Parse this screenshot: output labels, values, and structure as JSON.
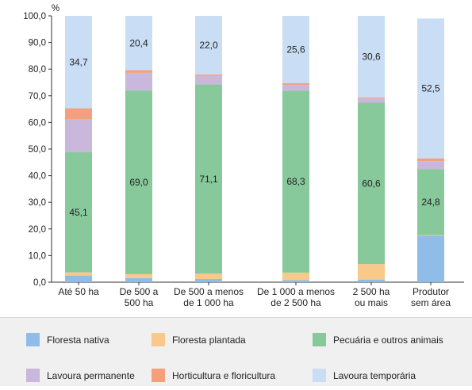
{
  "chart_data": {
    "type": "bar",
    "stacked": true,
    "orientation": "vertical",
    "unit_label": "%",
    "ylim": [
      0,
      100
    ],
    "yticks": [
      "0,0",
      "10,0",
      "20,0",
      "30,0",
      "40,0",
      "50,0",
      "60,0",
      "70,0",
      "80,0",
      "90,0",
      "100,0"
    ],
    "grid": false,
    "legend_position": "bottom",
    "categories": [
      [
        "Até 50 ha"
      ],
      [
        "De 500 a",
        "500 ha"
      ],
      [
        "De 500 a menos",
        "de 1 000 ha"
      ],
      [
        "De 1 000 a menos",
        "de 2 500 ha"
      ],
      [
        "2 500 ha",
        "ou mais"
      ],
      [
        "Produtor",
        "sem área"
      ]
    ],
    "series": [
      {
        "name": "Floresta nativa",
        "color": "#8fbde7",
        "values": [
          2.5,
          1.5,
          1.2,
          0.8,
          1.0,
          17.5
        ]
      },
      {
        "name": "Floresta plantada",
        "color": "#f8c98a",
        "values": [
          1.2,
          1.5,
          2.0,
          2.8,
          5.8,
          0.2
        ]
      },
      {
        "name": "Pecuária e outros animais",
        "color": "#87c99b",
        "values": [
          45.1,
          69.0,
          71.1,
          68.3,
          60.6,
          24.8
        ]
      },
      {
        "name": "Lavoura permanente",
        "color": "#c9b8db",
        "values": [
          12.5,
          6.6,
          3.2,
          2.2,
          1.6,
          3.0
        ]
      },
      {
        "name": "Horticultura e floricultura",
        "color": "#f4a07d",
        "values": [
          4.0,
          1.0,
          0.5,
          0.6,
          0.4,
          1.0
        ]
      },
      {
        "name": "Lavoura temporária",
        "color": "#c9def5",
        "values": [
          34.7,
          20.4,
          22.0,
          25.6,
          30.6,
          52.5
        ]
      }
    ],
    "data_labels": [
      {
        "category": 0,
        "series": 2,
        "text": "45,1"
      },
      {
        "category": 0,
        "series": 5,
        "text": "34,7"
      },
      {
        "category": 1,
        "series": 2,
        "text": "69,0"
      },
      {
        "category": 1,
        "series": 5,
        "text": "20,4"
      },
      {
        "category": 2,
        "series": 2,
        "text": "71,1"
      },
      {
        "category": 2,
        "series": 5,
        "text": "22,0"
      },
      {
        "category": 3,
        "series": 2,
        "text": "68,3"
      },
      {
        "category": 3,
        "series": 5,
        "text": "25,6"
      },
      {
        "category": 4,
        "series": 2,
        "text": "60,6"
      },
      {
        "category": 4,
        "series": 5,
        "text": "30,6"
      },
      {
        "category": 5,
        "series": 2,
        "text": "24,8"
      },
      {
        "category": 5,
        "series": 5,
        "text": "52,5"
      }
    ],
    "legend_order": [
      0,
      1,
      2,
      3,
      4,
      5
    ]
  }
}
